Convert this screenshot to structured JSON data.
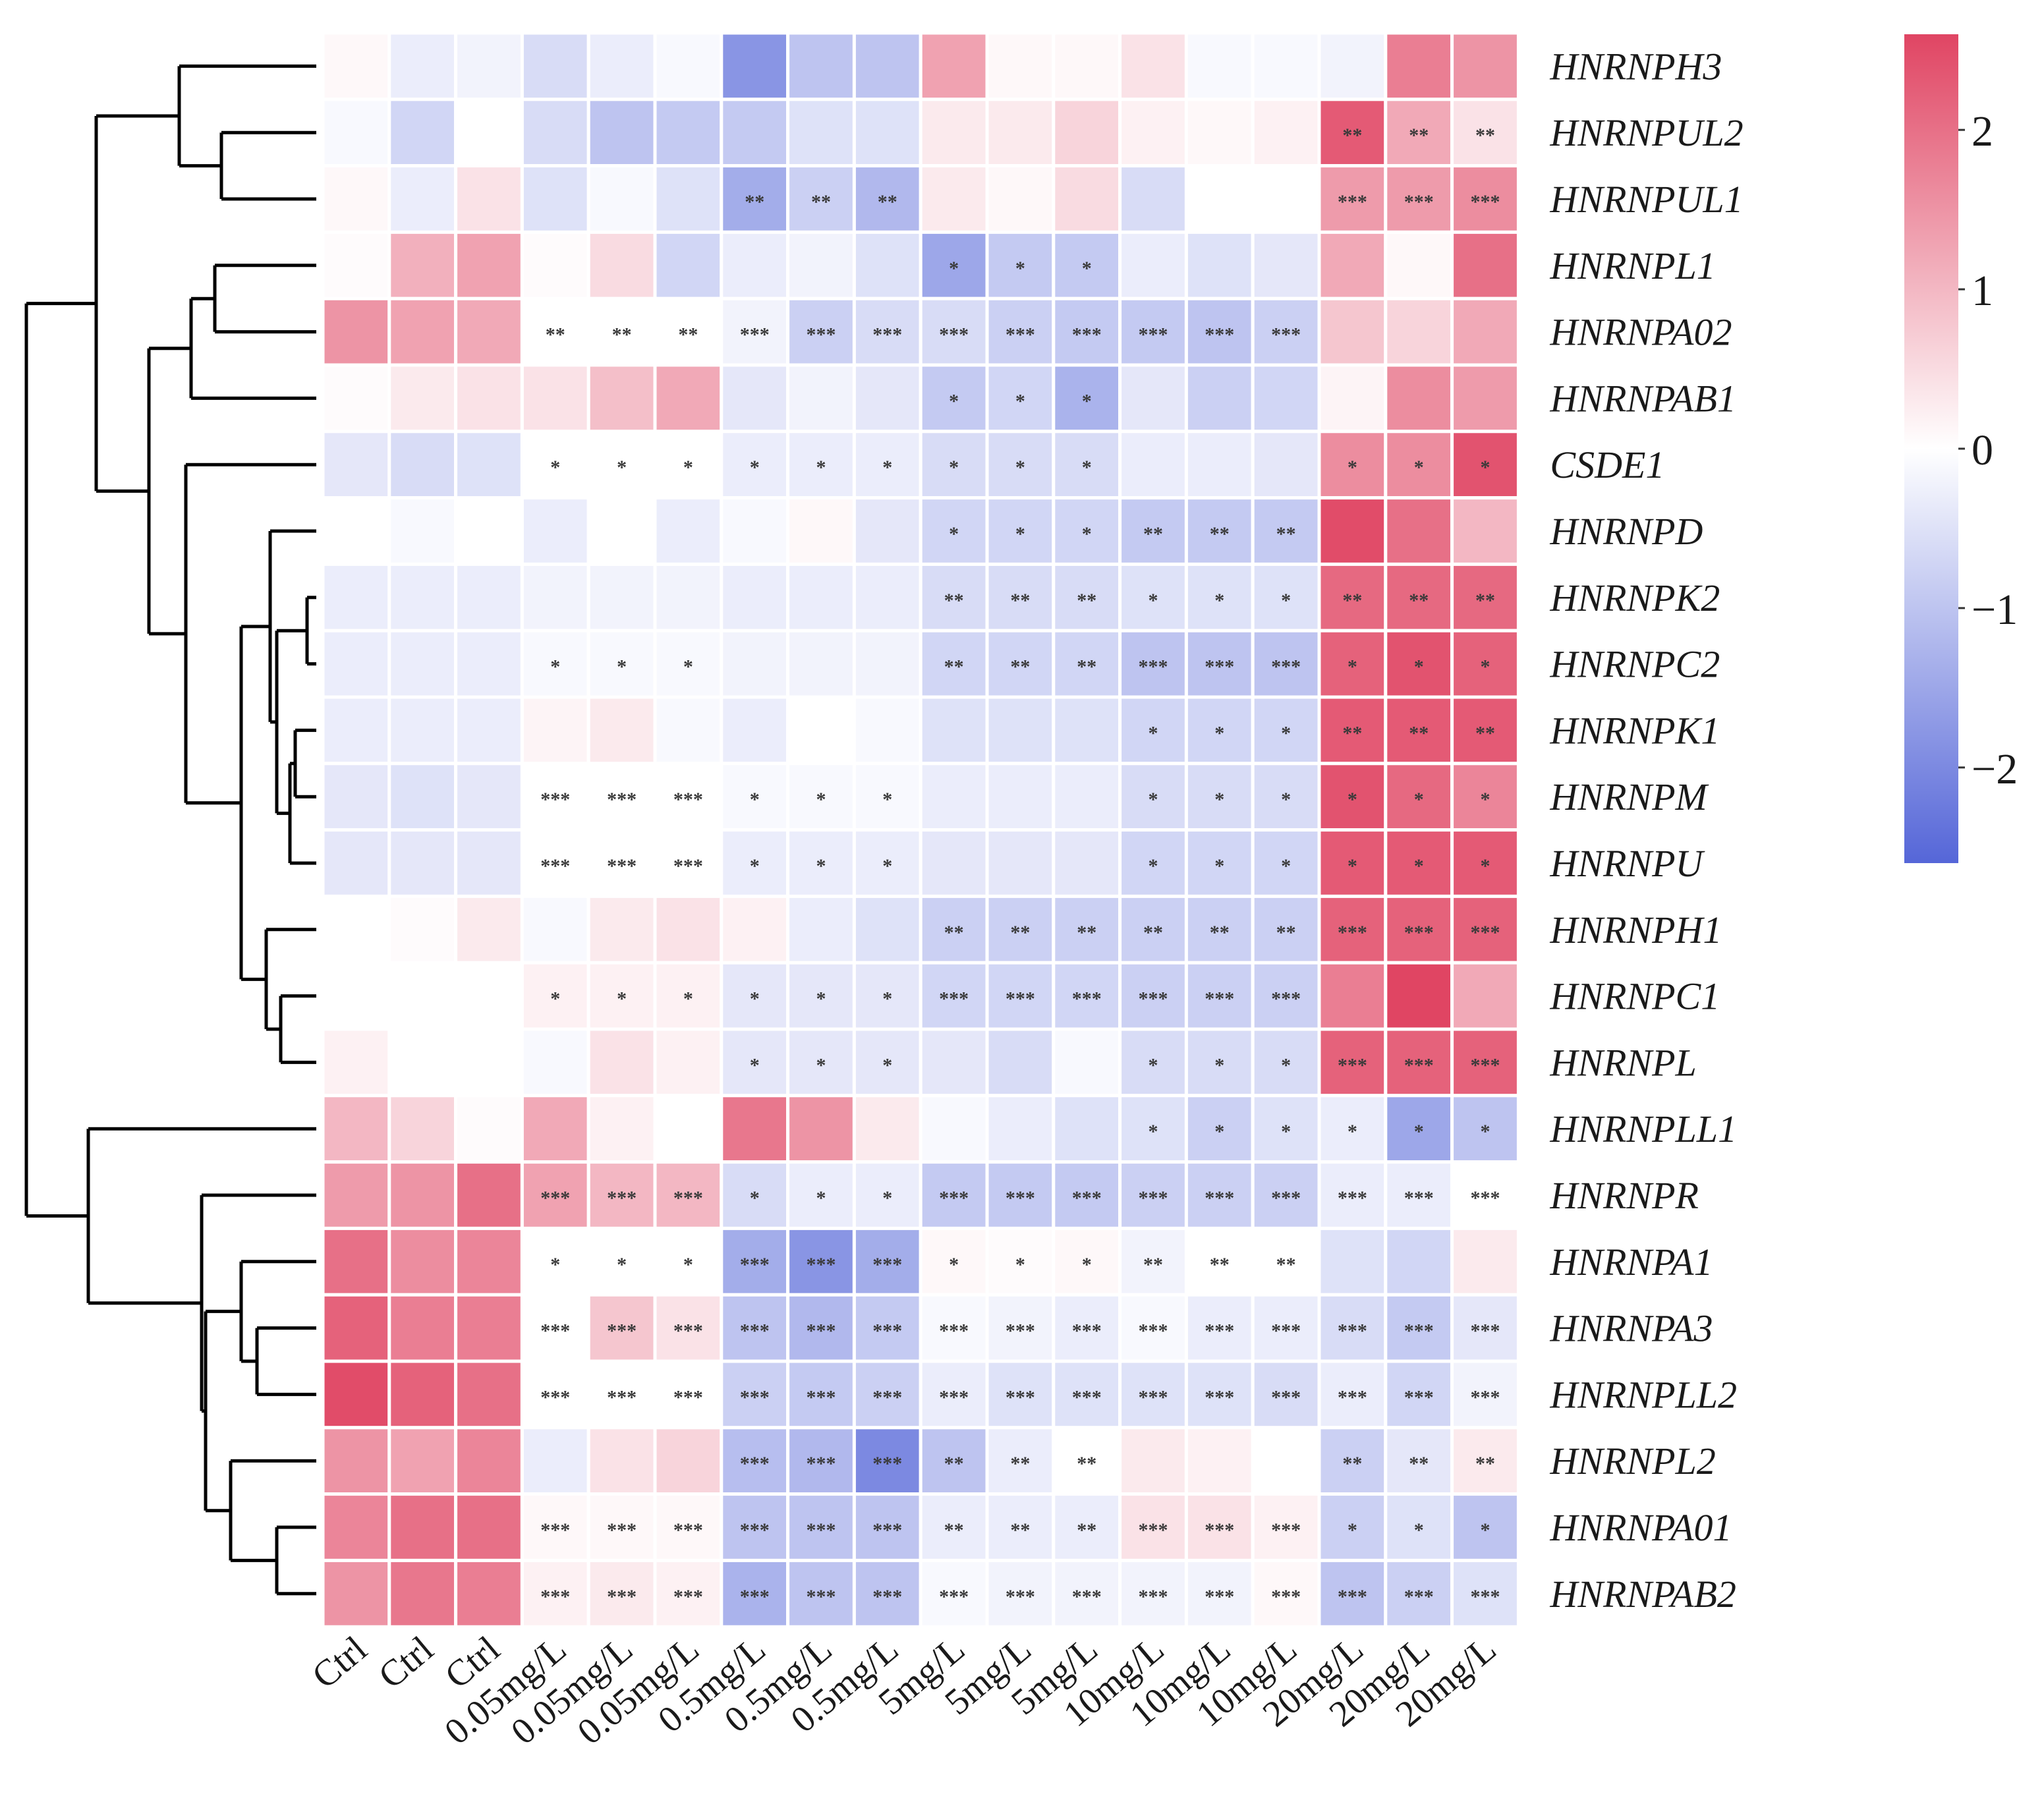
{
  "chart_data": {
    "type": "heatmap",
    "title": "",
    "columns": [
      "Ctrl",
      "Ctrl",
      "Ctrl",
      "0.05mg/L",
      "0.05mg/L",
      "0.05mg/L",
      "0.5mg/L",
      "0.5mg/L",
      "0.5mg/L",
      "5mg/L",
      "5mg/L",
      "5mg/L",
      "10mg/L",
      "10mg/L",
      "10mg/L",
      "20mg/L",
      "20mg/L",
      "20mg/L"
    ],
    "rows": [
      "HNRNPH3",
      "HNRNPUL2",
      "HNRNPUL1",
      "HNRNPL1",
      "HNRNPA02",
      "HNRNPAB1",
      "CSDE1",
      "HNRNPD",
      "HNRNPK2",
      "HNRNPC2",
      "HNRNPK1",
      "HNRNPM",
      "HNRNPU",
      "HNRNPH1",
      "HNRNPC1",
      "HNRNPL",
      "HNRNPLL1",
      "HNRNPR",
      "HNRNPA1",
      "HNRNPA3",
      "HNRNPLL2",
      "HNRNPL2",
      "HNRNPA01",
      "HNRNPAB2"
    ],
    "values": [
      [
        0.1,
        -0.3,
        -0.2,
        -0.6,
        -0.3,
        -0.1,
        -1.8,
        -1.0,
        -1.0,
        1.3,
        0.1,
        0.1,
        0.4,
        -0.1,
        -0.1,
        -0.2,
        1.8,
        1.5
      ],
      [
        -0.1,
        -0.7,
        0.0,
        -0.6,
        -1.0,
        -0.9,
        -0.9,
        -0.5,
        -0.5,
        0.3,
        0.3,
        0.6,
        0.2,
        0.1,
        0.2,
        2.3,
        1.2,
        0.4
      ],
      [
        0.1,
        -0.3,
        0.4,
        -0.5,
        -0.1,
        -0.5,
        -1.4,
        -0.8,
        -1.2,
        0.3,
        0.1,
        0.5,
        -0.6,
        0.0,
        0.0,
        1.4,
        1.4,
        1.6
      ],
      [
        0.05,
        1.1,
        1.3,
        0.05,
        0.5,
        -0.7,
        -0.3,
        -0.2,
        -0.5,
        -1.5,
        -0.9,
        -0.9,
        -0.3,
        -0.5,
        -0.4,
        1.2,
        0.1,
        2.0
      ],
      [
        1.5,
        1.3,
        1.2,
        0.0,
        0.0,
        0.0,
        -0.2,
        -0.8,
        -0.6,
        -0.6,
        -0.8,
        -0.9,
        -0.9,
        -1.0,
        -0.8,
        0.8,
        0.6,
        1.2
      ],
      [
        0.05,
        0.3,
        0.4,
        0.4,
        0.9,
        1.2,
        -0.4,
        -0.2,
        -0.4,
        -0.9,
        -0.7,
        -1.3,
        -0.4,
        -0.8,
        -0.7,
        0.15,
        1.6,
        1.4
      ],
      [
        -0.4,
        -0.6,
        -0.5,
        0.0,
        0.0,
        0.0,
        -0.3,
        -0.3,
        -0.3,
        -0.6,
        -0.6,
        -0.6,
        -0.3,
        -0.3,
        -0.4,
        1.6,
        1.6,
        2.4
      ],
      [
        0.0,
        -0.1,
        0.0,
        -0.3,
        0.0,
        -0.3,
        -0.1,
        0.1,
        -0.4,
        -0.7,
        -0.7,
        -0.7,
        -0.9,
        -0.9,
        -0.9,
        2.5,
        2.0,
        1.0
      ],
      [
        -0.3,
        -0.3,
        -0.3,
        -0.2,
        -0.2,
        -0.2,
        -0.3,
        -0.3,
        -0.3,
        -0.6,
        -0.6,
        -0.6,
        -0.5,
        -0.5,
        -0.5,
        2.1,
        2.1,
        2.1
      ],
      [
        -0.3,
        -0.3,
        -0.3,
        -0.1,
        -0.1,
        -0.1,
        -0.2,
        -0.2,
        -0.2,
        -0.7,
        -0.7,
        -0.7,
        -1.0,
        -1.0,
        -1.0,
        2.2,
        2.4,
        2.2
      ],
      [
        -0.3,
        -0.3,
        -0.3,
        0.15,
        0.3,
        -0.1,
        -0.3,
        0.0,
        -0.1,
        -0.5,
        -0.5,
        -0.5,
        -0.7,
        -0.7,
        -0.7,
        2.3,
        2.3,
        2.3
      ],
      [
        -0.4,
        -0.5,
        -0.4,
        0.0,
        0.0,
        0.0,
        -0.1,
        -0.1,
        -0.1,
        -0.3,
        -0.3,
        -0.3,
        -0.6,
        -0.6,
        -0.6,
        2.4,
        2.1,
        1.7
      ],
      [
        -0.4,
        -0.4,
        -0.4,
        0.0,
        0.0,
        0.0,
        -0.3,
        -0.3,
        -0.3,
        -0.4,
        -0.4,
        -0.4,
        -0.7,
        -0.7,
        -0.7,
        2.3,
        2.3,
        2.3
      ],
      [
        0.0,
        0.05,
        0.3,
        -0.1,
        0.3,
        0.4,
        0.2,
        -0.3,
        -0.5,
        -0.8,
        -0.8,
        -0.8,
        -0.8,
        -0.8,
        -0.8,
        2.2,
        2.2,
        2.2
      ],
      [
        0.0,
        0.0,
        0.0,
        0.2,
        0.2,
        0.2,
        -0.4,
        -0.4,
        -0.4,
        -0.7,
        -0.7,
        -0.7,
        -0.8,
        -0.8,
        -0.8,
        1.8,
        2.6,
        1.2
      ],
      [
        0.2,
        0.0,
        0.0,
        -0.1,
        0.4,
        0.2,
        -0.4,
        -0.4,
        -0.4,
        -0.4,
        -0.6,
        -0.1,
        -0.6,
        -0.6,
        -0.6,
        2.2,
        2.2,
        2.2
      ],
      [
        1.0,
        0.6,
        0.05,
        1.2,
        0.2,
        0.0,
        1.9,
        1.5,
        0.3,
        -0.1,
        -0.3,
        -0.5,
        -0.5,
        -0.8,
        -0.5,
        -0.3,
        -1.5,
        -1.0
      ],
      [
        1.4,
        1.5,
        2.0,
        1.3,
        1.0,
        1.0,
        -0.6,
        -0.3,
        -0.3,
        -0.9,
        -0.9,
        -0.9,
        -0.8,
        -0.8,
        -0.8,
        -0.3,
        -0.3,
        0.0
      ],
      [
        2.0,
        1.6,
        1.7,
        0.0,
        0.0,
        0.0,
        -1.4,
        -1.8,
        -1.4,
        0.1,
        0.05,
        0.1,
        -0.2,
        0.0,
        0.0,
        -0.5,
        -0.7,
        0.3
      ],
      [
        2.2,
        1.8,
        1.8,
        0.0,
        0.8,
        0.4,
        -1.0,
        -1.2,
        -0.9,
        -0.1,
        -0.2,
        -0.3,
        -0.1,
        -0.3,
        -0.3,
        -0.6,
        -0.9,
        -0.4
      ],
      [
        2.5,
        2.2,
        2.0,
        0.0,
        0.0,
        0.0,
        -0.8,
        -0.9,
        -0.8,
        -0.3,
        -0.5,
        -0.5,
        -0.5,
        -0.5,
        -0.6,
        -0.3,
        -0.7,
        -0.2
      ],
      [
        1.5,
        1.3,
        1.7,
        -0.3,
        0.4,
        0.6,
        -1.1,
        -1.2,
        -2.0,
        -1.0,
        -0.3,
        0.0,
        0.3,
        0.2,
        0.0,
        -0.8,
        -0.4,
        0.3
      ],
      [
        1.7,
        2.0,
        2.0,
        0.1,
        0.1,
        0.1,
        -1.0,
        -1.0,
        -1.0,
        -0.3,
        -0.3,
        -0.3,
        0.4,
        0.4,
        0.2,
        -0.8,
        -0.5,
        -1.0
      ],
      [
        1.5,
        1.9,
        1.8,
        0.2,
        0.3,
        0.2,
        -1.3,
        -1.0,
        -1.0,
        -0.1,
        -0.2,
        -0.2,
        -0.2,
        -0.2,
        0.1,
        -1.0,
        -0.8,
        -0.5
      ]
    ],
    "significance": [
      [
        "",
        "",
        "",
        "",
        "",
        "",
        "",
        "",
        "",
        "",
        "",
        "",
        "",
        "",
        "",
        "",
        "",
        ""
      ],
      [
        "",
        "",
        "",
        "",
        "",
        "",
        "",
        "",
        "",
        "",
        "",
        "",
        "",
        "",
        "",
        "**",
        "**",
        "**"
      ],
      [
        "",
        "",
        "",
        "",
        "",
        "",
        "**",
        "**",
        "**",
        "",
        "",
        "",
        "",
        "",
        "",
        "***",
        "***",
        "***"
      ],
      [
        "",
        "",
        "",
        "",
        "",
        "",
        "",
        "",
        "",
        "*",
        "*",
        "*",
        "",
        "",
        "",
        "",
        "",
        ""
      ],
      [
        "",
        "",
        "",
        "**",
        "**",
        "**",
        "***",
        "***",
        "***",
        "***",
        "***",
        "***",
        "***",
        "***",
        "***",
        "",
        "",
        ""
      ],
      [
        "",
        "",
        "",
        "",
        "",
        "",
        "",
        "",
        "",
        "*",
        "*",
        "*",
        "",
        "",
        "",
        "",
        "",
        ""
      ],
      [
        "",
        "",
        "",
        "*",
        "*",
        "*",
        "*",
        "*",
        "*",
        "*",
        "*",
        "*",
        "",
        "",
        "",
        "*",
        "*",
        "*"
      ],
      [
        "",
        "",
        "",
        "",
        "",
        "",
        "",
        "",
        "",
        "*",
        "*",
        "*",
        "**",
        "**",
        "**",
        "",
        "",
        ""
      ],
      [
        "",
        "",
        "",
        "",
        "",
        "",
        "",
        "",
        "",
        "**",
        "**",
        "**",
        "*",
        "*",
        "*",
        "**",
        "**",
        "**"
      ],
      [
        "",
        "",
        "",
        "*",
        "*",
        "*",
        "",
        "",
        "",
        "**",
        "**",
        "**",
        "***",
        "***",
        "***",
        "*",
        "*",
        "*"
      ],
      [
        "",
        "",
        "",
        "",
        "",
        "",
        "",
        "",
        "",
        "",
        "",
        "",
        "*",
        "*",
        "*",
        "**",
        "**",
        "**"
      ],
      [
        "",
        "",
        "",
        "***",
        "***",
        "***",
        "*",
        "*",
        "*",
        "",
        "",
        "",
        "*",
        "*",
        "*",
        "*",
        "*",
        "*"
      ],
      [
        "",
        "",
        "",
        "***",
        "***",
        "***",
        "*",
        "*",
        "*",
        "",
        "",
        "",
        "*",
        "*",
        "*",
        "*",
        "*",
        "*"
      ],
      [
        "",
        "",
        "",
        "",
        "",
        "",
        "",
        "",
        "",
        "**",
        "**",
        "**",
        "**",
        "**",
        "**",
        "***",
        "***",
        "***"
      ],
      [
        "",
        "",
        "",
        "*",
        "*",
        "*",
        "*",
        "*",
        "*",
        "***",
        "***",
        "***",
        "***",
        "***",
        "***",
        "",
        "",
        ""
      ],
      [
        "",
        "",
        "",
        "",
        "",
        "",
        "*",
        "*",
        "*",
        "",
        "",
        "",
        "*",
        "*",
        "*",
        "***",
        "***",
        "***"
      ],
      [
        "",
        "",
        "",
        "",
        "",
        "",
        "",
        "",
        "",
        "",
        "",
        "",
        "*",
        "*",
        "*",
        "*",
        "*",
        "*"
      ],
      [
        "",
        "",
        "",
        "***",
        "***",
        "***",
        "*",
        "*",
        "*",
        "***",
        "***",
        "***",
        "***",
        "***",
        "***",
        "***",
        "***",
        "***"
      ],
      [
        "",
        "",
        "",
        "*",
        "*",
        "*",
        "***",
        "***",
        "***",
        "*",
        "*",
        "*",
        "**",
        "**",
        "**",
        "",
        "",
        ""
      ],
      [
        "",
        "",
        "",
        "***",
        "***",
        "***",
        "***",
        "***",
        "***",
        "***",
        "***",
        "***",
        "***",
        "***",
        "***",
        "***",
        "***",
        "***"
      ],
      [
        "",
        "",
        "",
        "***",
        "***",
        "***",
        "***",
        "***",
        "***",
        "***",
        "***",
        "***",
        "***",
        "***",
        "***",
        "***",
        "***",
        "***"
      ],
      [
        "",
        "",
        "",
        "",
        "",
        "",
        "***",
        "***",
        "***",
        "**",
        "**",
        "**",
        "",
        "",
        "",
        "**",
        "**",
        "**"
      ],
      [
        "",
        "",
        "",
        "***",
        "***",
        "***",
        "***",
        "***",
        "***",
        "**",
        "**",
        "**",
        "***",
        "***",
        "***",
        "*",
        "*",
        "*"
      ],
      [
        "",
        "",
        "",
        "***",
        "***",
        "***",
        "***",
        "***",
        "***",
        "***",
        "***",
        "***",
        "***",
        "***",
        "***",
        "***",
        "***",
        "***"
      ]
    ],
    "colorbar": {
      "range": [
        -2.6,
        2.6
      ],
      "ticks": [
        2,
        1,
        0,
        -1,
        -2
      ],
      "tick_labels": [
        "2",
        "1",
        "0",
        "−1",
        "−2"
      ],
      "colors": {
        "low": "#5566d8",
        "mid": "#ffffff",
        "high": "#e04563"
      }
    },
    "row_dendrogram": true
  }
}
